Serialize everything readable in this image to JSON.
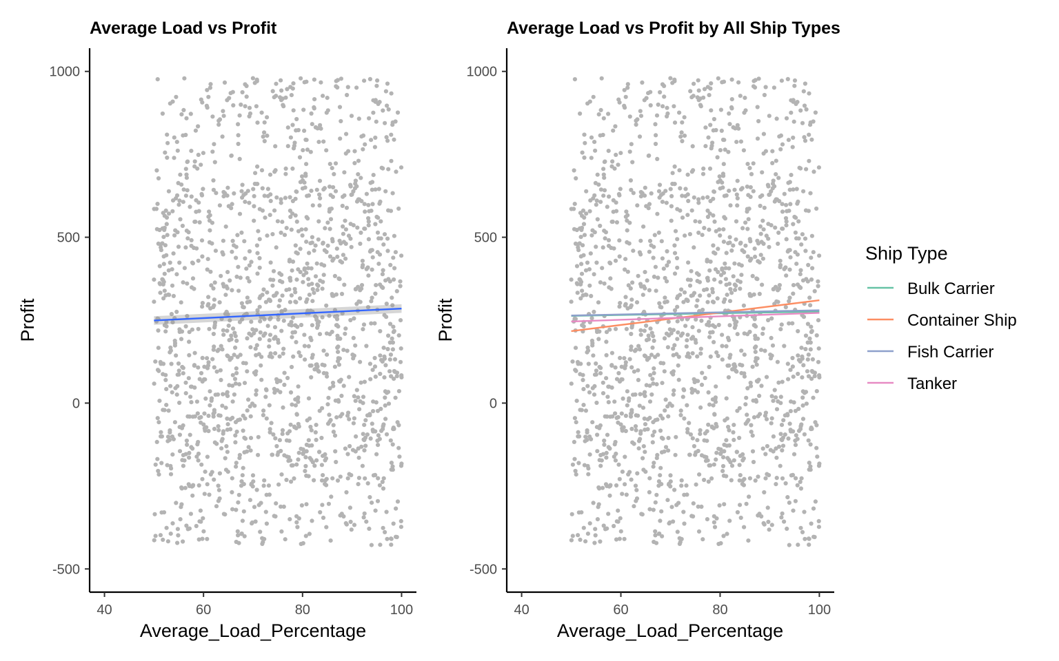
{
  "chart_data": [
    {
      "type": "scatter",
      "title": "Average Load vs Profit",
      "xlabel": "Average_Load_Percentage",
      "ylabel": "Profit",
      "xlim": [
        37,
        103
      ],
      "ylim": [
        -570,
        1070
      ],
      "x_ticks": [
        40,
        60,
        80,
        100
      ],
      "y_ticks": [
        1000,
        500,
        0,
        -500
      ],
      "grid": false,
      "point_color": "#b3b3b3",
      "points": {
        "count": 1600,
        "x_range": [
          50,
          100
        ],
        "y_range": [
          -430,
          980
        ],
        "note_seed": 11
      },
      "fits": [
        {
          "x": [
            50,
            100
          ],
          "y": [
            249,
            285
          ],
          "color": "#3366ff",
          "band": [
            13,
            13
          ]
        }
      ]
    },
    {
      "type": "scatter",
      "title": "Average Load vs Profit by All Ship Types",
      "xlabel": "Average_Load_Percentage",
      "ylabel": "Profit",
      "xlim": [
        37,
        103
      ],
      "ylim": [
        -570,
        1070
      ],
      "x_ticks": [
        40,
        60,
        80,
        100
      ],
      "y_ticks": [
        1000,
        500,
        0,
        -500
      ],
      "grid": false,
      "point_color": "#b3b3b3",
      "points": {
        "count": 1600,
        "x_range": [
          50,
          100
        ],
        "y_range": [
          -430,
          980
        ],
        "note_seed": 11
      },
      "legend": {
        "title": "Ship Type",
        "position": "right"
      },
      "fits": [
        {
          "name": "Bulk Carrier",
          "x": [
            50,
            100
          ],
          "y": [
            263,
            276
          ],
          "color": "#66c2a5"
        },
        {
          "name": "Container Ship",
          "x": [
            50,
            100
          ],
          "y": [
            217,
            310
          ],
          "color": "#fc8d62"
        },
        {
          "name": "Fish Carrier",
          "x": [
            50,
            100
          ],
          "y": [
            264,
            280
          ],
          "color": "#8da0cb"
        },
        {
          "name": "Tanker",
          "x": [
            50,
            100
          ],
          "y": [
            246,
            272
          ],
          "color": "#e78ac3"
        }
      ]
    }
  ]
}
